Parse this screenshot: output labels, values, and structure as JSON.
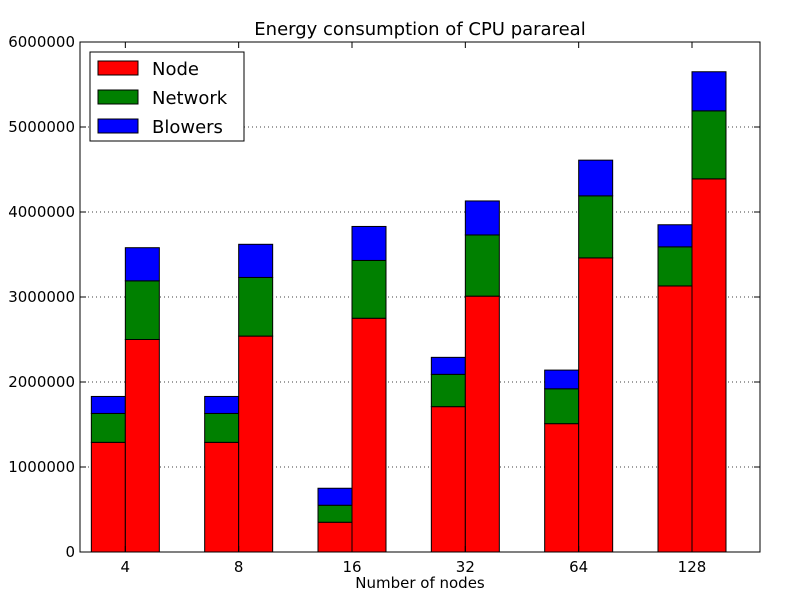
{
  "chart_data": {
    "type": "bar",
    "stacked": true,
    "title": "Energy consumption of CPU parareal",
    "xlabel": "Number of nodes",
    "ylabel": "",
    "ylim": [
      0,
      6000000
    ],
    "yticks": [
      0,
      1000000,
      2000000,
      3000000,
      4000000,
      5000000,
      6000000
    ],
    "ytick_labels": [
      "0",
      "1000000",
      "2000000",
      "3000000",
      "4000000",
      "5000000",
      "6000000"
    ],
    "grid": "y-dotted",
    "legend_position": "top-left",
    "categories": [
      "4",
      "8",
      "16",
      "32",
      "64",
      "128"
    ],
    "bars_per_category": 2,
    "series": [
      {
        "name": "Node",
        "color": "#ff0000",
        "values": [
          [
            1290000,
            2500000
          ],
          [
            1290000,
            2540000
          ],
          [
            350000,
            2750000
          ],
          [
            1710000,
            3010000
          ],
          [
            1510000,
            3460000
          ],
          [
            3130000,
            4390000
          ]
        ]
      },
      {
        "name": "Network",
        "color": "#008000",
        "values": [
          [
            340000,
            690000
          ],
          [
            340000,
            690000
          ],
          [
            200000,
            680000
          ],
          [
            380000,
            720000
          ],
          [
            410000,
            730000
          ],
          [
            460000,
            800000
          ]
        ]
      },
      {
        "name": "Blowers",
        "color": "#0000ff",
        "values": [
          [
            200000,
            390000
          ],
          [
            200000,
            390000
          ],
          [
            200000,
            400000
          ],
          [
            200000,
            400000
          ],
          [
            220000,
            420000
          ],
          [
            260000,
            460000
          ]
        ]
      }
    ]
  }
}
